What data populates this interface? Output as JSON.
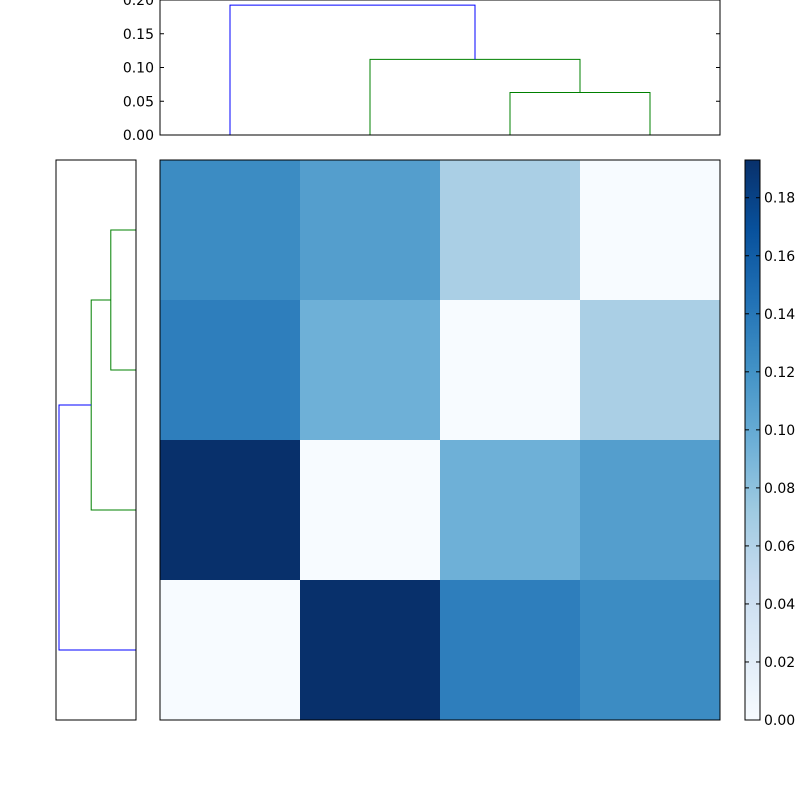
{
  "chart_data": {
    "type": "clustermap",
    "matrix": [
      [
        0.125,
        0.11,
        0.065,
        0
      ],
      [
        0.135,
        0.095,
        0,
        0.065
      ],
      [
        0.193,
        0,
        0.095,
        0.11
      ],
      [
        0,
        0.193,
        0.135,
        0.125
      ]
    ],
    "cmap_colors": [
      "#f7fbff",
      "#deebf7",
      "#c6dbef",
      "#9ecae1",
      "#6baed6",
      "#4292c6",
      "#2171b5",
      "#08519c",
      "#08306b"
    ],
    "clim": [
      0,
      0.193
    ],
    "cticks": [
      {
        "value": 0,
        "label": "0.00"
      },
      {
        "value": 0.02,
        "label": "0.02"
      },
      {
        "value": 0.04,
        "label": "0.04"
      },
      {
        "value": 0.06,
        "label": "0.06"
      },
      {
        "value": 0.08,
        "label": "0.08"
      },
      {
        "value": 0.1,
        "label": "0.10"
      },
      {
        "value": 0.12,
        "label": "0.12"
      },
      {
        "value": 0.14,
        "label": "0.14"
      },
      {
        "value": 0.16,
        "label": "0.16"
      },
      {
        "value": 0.18,
        "label": "0.18"
      }
    ],
    "dendrogram": {
      "icoord": [
        [
          25,
          25,
          35,
          35
        ],
        [
          15,
          15,
          30,
          30
        ],
        [
          5,
          5,
          22.5,
          22.5
        ]
      ],
      "dcoord": [
        [
          0,
          0.063,
          0.063,
          0
        ],
        [
          0,
          0.112,
          0.112,
          0.063
        ],
        [
          0,
          0.1925,
          0.1925,
          0.112
        ]
      ],
      "colors": [
        "#008000",
        "#008000",
        "#0000ff"
      ],
      "leaf_range": [
        0,
        40
      ],
      "lim": [
        0,
        0.2
      ]
    },
    "top_yticks": [
      {
        "value": 0,
        "label": "0.00"
      },
      {
        "value": 0.05,
        "label": "0.05"
      },
      {
        "value": 0.1,
        "label": "0.10"
      },
      {
        "value": 0.15,
        "label": "0.15"
      },
      {
        "value": 0.2,
        "label": "0.20"
      }
    ]
  }
}
